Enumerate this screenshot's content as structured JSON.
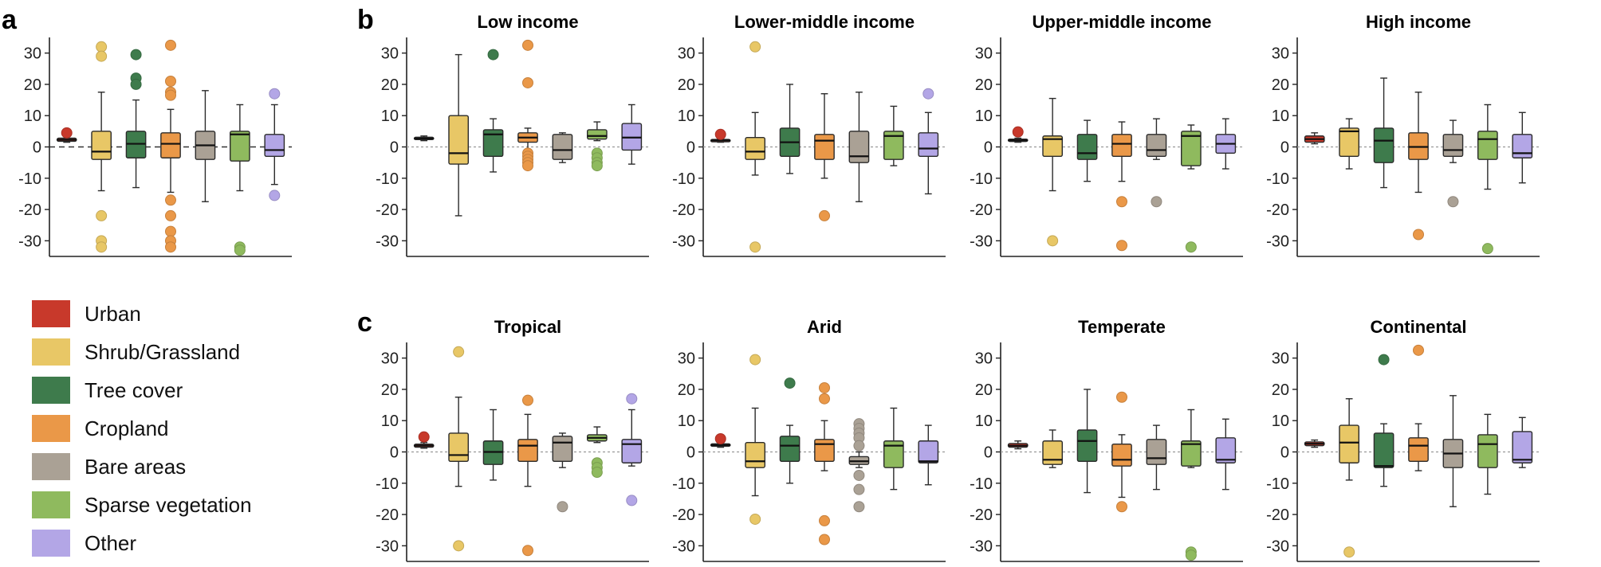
{
  "figure_labels": {
    "a": "a",
    "b": "b",
    "c": "c"
  },
  "legend": [
    {
      "name": "Urban",
      "color": "#c8392b"
    },
    {
      "name": "Shrub/Grassland",
      "color": "#e8c766"
    },
    {
      "name": "Tree cover",
      "color": "#3e7b4c"
    },
    {
      "name": "Cropland",
      "color": "#ea9848"
    },
    {
      "name": "Bare areas",
      "color": "#aaa195"
    },
    {
      "name": "Sparse vegetation",
      "color": "#8fba5e"
    },
    {
      "name": "Other",
      "color": "#b3a6e6"
    }
  ],
  "chart_data": [
    {
      "id": "a",
      "type": "box",
      "title": "",
      "ylim": [
        -35,
        35
      ],
      "yticks": [
        30,
        20,
        10,
        0,
        -10,
        -20,
        -30
      ],
      "reference_line": 0,
      "boxes": [
        {
          "class": "Urban",
          "min": 1.5,
          "q1": 1.8,
          "median": 2.3,
          "q3": 2.8,
          "max": 3.3,
          "outliers": [
            4.5
          ]
        },
        {
          "class": "Shrub/Grassland",
          "min": -14,
          "q1": -4,
          "median": -1.5,
          "q3": 5,
          "max": 17.5,
          "outliers": [
            32,
            29,
            -22,
            -30,
            -32
          ]
        },
        {
          "class": "Tree cover",
          "min": -13,
          "q1": -3.5,
          "median": 1,
          "q3": 5,
          "max": 15,
          "outliers": [
            29.5,
            22,
            20
          ]
        },
        {
          "class": "Cropland",
          "min": -14.5,
          "q1": -3.5,
          "median": 1,
          "q3": 4.5,
          "max": 12,
          "outliers": [
            32.5,
            21,
            17.5,
            16.5,
            -17,
            -22,
            -27,
            -30,
            -32
          ]
        },
        {
          "class": "Bare areas",
          "min": -17.5,
          "q1": -4,
          "median": 0.5,
          "q3": 5,
          "max": 18,
          "outliers": []
        },
        {
          "class": "Sparse vegetation",
          "min": -14,
          "q1": -4.5,
          "median": 4,
          "q3": 5,
          "max": 13.5,
          "outliers": [
            -32,
            -33
          ]
        },
        {
          "class": "Other",
          "min": -12,
          "q1": -3,
          "median": -1,
          "q3": 4,
          "max": 13.5,
          "outliers": [
            17,
            -15.5
          ]
        }
      ]
    },
    {
      "id": "b1",
      "type": "box",
      "title": "Low income",
      "ylim": [
        -35,
        35
      ],
      "yticks": [
        30,
        20,
        10,
        0,
        -10,
        -20,
        -30
      ],
      "reference_line": 0,
      "boxes": [
        {
          "class": "Urban",
          "min": 2,
          "q1": 2.4,
          "median": 2.7,
          "q3": 3.1,
          "max": 3.5,
          "outliers": []
        },
        {
          "class": "Shrub/Grassland",
          "min": -22,
          "q1": -5.5,
          "median": -2,
          "q3": 10,
          "max": 29.5,
          "outliers": []
        },
        {
          "class": "Tree cover",
          "min": -8,
          "q1": -3,
          "median": 4,
          "q3": 5.5,
          "max": 9,
          "outliers": [
            29.5
          ]
        },
        {
          "class": "Cropland",
          "min": -2,
          "q1": 1.5,
          "median": 3,
          "q3": 4.5,
          "max": 6,
          "outliers": [
            32.5,
            20.5,
            -2,
            -3,
            -4,
            -5,
            -6
          ]
        },
        {
          "class": "Bare areas",
          "min": -5,
          "q1": -4,
          "median": -1,
          "q3": 4,
          "max": 4.5,
          "outliers": []
        },
        {
          "class": "Sparse vegetation",
          "min": 2,
          "q1": 2.5,
          "median": 3.5,
          "q3": 5.5,
          "max": 8,
          "outliers": [
            -2,
            -3.5,
            -5,
            -6
          ]
        },
        {
          "class": "Other",
          "min": -5.5,
          "q1": -1,
          "median": 3,
          "q3": 7.5,
          "max": 13.5,
          "outliers": []
        }
      ]
    },
    {
      "id": "b2",
      "type": "box",
      "title": "Lower-middle income",
      "ylim": [
        -35,
        35
      ],
      "yticks": [
        30,
        20,
        10,
        0,
        -10,
        -20,
        -30
      ],
      "reference_line": 0,
      "boxes": [
        {
          "class": "Urban",
          "min": 1.5,
          "q1": 1.8,
          "median": 2.1,
          "q3": 2.4,
          "max": 2.7,
          "outliers": [
            4
          ]
        },
        {
          "class": "Shrub/Grassland",
          "min": -9,
          "q1": -4,
          "median": -1.5,
          "q3": 3,
          "max": 11,
          "outliers": [
            32,
            -32
          ]
        },
        {
          "class": "Tree cover",
          "min": -8.5,
          "q1": -3,
          "median": 1.5,
          "q3": 6,
          "max": 20,
          "outliers": []
        },
        {
          "class": "Cropland",
          "min": -10,
          "q1": -4,
          "median": 2,
          "q3": 4,
          "max": 17,
          "outliers": [
            -22
          ]
        },
        {
          "class": "Bare areas",
          "min": -17.5,
          "q1": -5,
          "median": -3,
          "q3": 5,
          "max": 17.5,
          "outliers": []
        },
        {
          "class": "Sparse vegetation",
          "min": -6,
          "q1": -4,
          "median": 3.5,
          "q3": 5,
          "max": 13,
          "outliers": []
        },
        {
          "class": "Other",
          "min": -15,
          "q1": -3,
          "median": -0.5,
          "q3": 4.5,
          "max": 11,
          "outliers": [
            17
          ]
        }
      ]
    },
    {
      "id": "b3",
      "type": "box",
      "title": "Upper-middle income",
      "ylim": [
        -35,
        35
      ],
      "yticks": [
        30,
        20,
        10,
        0,
        -10,
        -20,
        -30
      ],
      "reference_line": 0,
      "boxes": [
        {
          "class": "Urban",
          "min": 1.5,
          "q1": 1.8,
          "median": 2.1,
          "q3": 2.5,
          "max": 2.8,
          "outliers": [
            4.8
          ]
        },
        {
          "class": "Shrub/Grassland",
          "min": -14,
          "q1": -3,
          "median": 2.5,
          "q3": 3.5,
          "max": 15.5,
          "outliers": [
            -30
          ]
        },
        {
          "class": "Tree cover",
          "min": -11,
          "q1": -4,
          "median": -2,
          "q3": 4,
          "max": 8.5,
          "outliers": []
        },
        {
          "class": "Cropland",
          "min": -11,
          "q1": -3,
          "median": 1,
          "q3": 4,
          "max": 8,
          "outliers": [
            -17.5,
            -31.5
          ]
        },
        {
          "class": "Bare areas",
          "min": -4,
          "q1": -3,
          "median": -1,
          "q3": 4,
          "max": 9,
          "outliers": [
            -17.5
          ]
        },
        {
          "class": "Sparse vegetation",
          "min": -7,
          "q1": -6,
          "median": 3.5,
          "q3": 5,
          "max": 7,
          "outliers": [
            -32
          ]
        },
        {
          "class": "Other",
          "min": -7,
          "q1": -2,
          "median": 1,
          "q3": 4,
          "max": 9,
          "outliers": []
        }
      ]
    },
    {
      "id": "b4",
      "type": "box",
      "title": "High income",
      "ylim": [
        -35,
        35
      ],
      "yticks": [
        30,
        20,
        10,
        0,
        -10,
        -20,
        -30
      ],
      "reference_line": 0,
      "boxes": [
        {
          "class": "Urban",
          "min": 1,
          "q1": 1.5,
          "median": 2.5,
          "q3": 3.5,
          "max": 4.5,
          "outliers": []
        },
        {
          "class": "Shrub/Grassland",
          "min": -7,
          "q1": -3,
          "median": 5,
          "q3": 6,
          "max": 9,
          "outliers": []
        },
        {
          "class": "Tree cover",
          "min": -13,
          "q1": -5,
          "median": 2,
          "q3": 6,
          "max": 22,
          "outliers": []
        },
        {
          "class": "Cropland",
          "min": -14.5,
          "q1": -4,
          "median": 0,
          "q3": 4.5,
          "max": 17.5,
          "outliers": [
            -28
          ]
        },
        {
          "class": "Bare areas",
          "min": -5,
          "q1": -3,
          "median": -1,
          "q3": 4,
          "max": 8.5,
          "outliers": [
            -17.5
          ]
        },
        {
          "class": "Sparse vegetation",
          "min": -13.5,
          "q1": -4,
          "median": 2.5,
          "q3": 5,
          "max": 13.5,
          "outliers": [
            -32.5
          ]
        },
        {
          "class": "Other",
          "min": -11.5,
          "q1": -3.5,
          "median": -2,
          "q3": 4,
          "max": 11,
          "outliers": []
        }
      ]
    },
    {
      "id": "c1",
      "type": "box",
      "title": "Tropical",
      "ylim": [
        -35,
        35
      ],
      "yticks": [
        30,
        20,
        10,
        0,
        -10,
        -20,
        -30
      ],
      "reference_line": 0,
      "boxes": [
        {
          "class": "Urban",
          "min": 1.2,
          "q1": 1.5,
          "median": 2,
          "q3": 2.5,
          "max": 3,
          "outliers": [
            4.8
          ]
        },
        {
          "class": "Shrub/Grassland",
          "min": -11,
          "q1": -3,
          "median": -1,
          "q3": 6,
          "max": 17.5,
          "outliers": [
            32,
            -30
          ]
        },
        {
          "class": "Tree cover",
          "min": -9,
          "q1": -4,
          "median": 0,
          "q3": 3.5,
          "max": 13.5,
          "outliers": []
        },
        {
          "class": "Cropland",
          "min": -11,
          "q1": -3,
          "median": 2,
          "q3": 4,
          "max": 12,
          "outliers": [
            16.5,
            -31.5
          ]
        },
        {
          "class": "Bare areas",
          "min": -5,
          "q1": -3,
          "median": 3,
          "q3": 5,
          "max": 6,
          "outliers": [
            -17.5
          ]
        },
        {
          "class": "Sparse vegetation",
          "min": 3,
          "q1": 3.5,
          "median": 4.5,
          "q3": 5.5,
          "max": 8,
          "outliers": [
            -3.5,
            -5,
            -6.5
          ]
        },
        {
          "class": "Other",
          "min": -4.5,
          "q1": -3.5,
          "median": 2.5,
          "q3": 4,
          "max": 13.5,
          "outliers": [
            17,
            -15.5
          ]
        }
      ]
    },
    {
      "id": "c2",
      "type": "box",
      "title": "Arid",
      "ylim": [
        -35,
        35
      ],
      "yticks": [
        30,
        20,
        10,
        0,
        -10,
        -20,
        -30
      ],
      "reference_line": 0,
      "boxes": [
        {
          "class": "Urban",
          "min": 1.5,
          "q1": 1.8,
          "median": 2.2,
          "q3": 2.6,
          "max": 3,
          "outliers": [
            4.2
          ]
        },
        {
          "class": "Shrub/Grassland",
          "min": -14,
          "q1": -5,
          "median": -3,
          "q3": 3,
          "max": 14,
          "outliers": [
            29.5,
            -21.5
          ]
        },
        {
          "class": "Tree cover",
          "min": -10,
          "q1": -3,
          "median": 2,
          "q3": 5,
          "max": 8.5,
          "outliers": [
            22
          ]
        },
        {
          "class": "Cropland",
          "min": -6,
          "q1": -3,
          "median": 2.5,
          "q3": 4,
          "max": 10,
          "outliers": [
            20.5,
            17,
            -22,
            -28
          ]
        },
        {
          "class": "Bare areas",
          "min": -5,
          "q1": -4,
          "median": -3,
          "q3": -1.5,
          "max": 0,
          "outliers": [
            9,
            7.5,
            6,
            4.5,
            2,
            -7.5,
            -12,
            -17.5
          ]
        },
        {
          "class": "Sparse vegetation",
          "min": -12,
          "q1": -5,
          "median": 2,
          "q3": 3.5,
          "max": 14,
          "outliers": []
        },
        {
          "class": "Other",
          "min": -10.5,
          "q1": -3.5,
          "median": -3,
          "q3": 3.5,
          "max": 8.5,
          "outliers": []
        }
      ]
    },
    {
      "id": "c3",
      "type": "box",
      "title": "Temperate",
      "ylim": [
        -35,
        35
      ],
      "yticks": [
        30,
        20,
        10,
        0,
        -10,
        -20,
        -30
      ],
      "reference_line": 0,
      "boxes": [
        {
          "class": "Urban",
          "min": 1,
          "q1": 1.5,
          "median": 2,
          "q3": 2.7,
          "max": 3.5,
          "outliers": []
        },
        {
          "class": "Shrub/Grassland",
          "min": -5,
          "q1": -4,
          "median": -2.5,
          "q3": 3.5,
          "max": 7,
          "outliers": []
        },
        {
          "class": "Tree cover",
          "min": -13,
          "q1": -3,
          "median": 3.5,
          "q3": 7,
          "max": 20,
          "outliers": []
        },
        {
          "class": "Cropland",
          "min": -14.5,
          "q1": -4.5,
          "median": -2.5,
          "q3": 2.5,
          "max": 5.5,
          "outliers": [
            17.5,
            -17.5
          ]
        },
        {
          "class": "Bare areas",
          "min": -12,
          "q1": -4,
          "median": -2,
          "q3": 4,
          "max": 8.5,
          "outliers": []
        },
        {
          "class": "Sparse vegetation",
          "min": -5,
          "q1": -4.5,
          "median": 2.5,
          "q3": 3.5,
          "max": 13.5,
          "outliers": [
            -32,
            -33
          ]
        },
        {
          "class": "Other",
          "min": -12,
          "q1": -3.5,
          "median": -2.5,
          "q3": 4.5,
          "max": 10.5,
          "outliers": []
        }
      ]
    },
    {
      "id": "c4",
      "type": "box",
      "title": "Continental",
      "ylim": [
        -35,
        35
      ],
      "yticks": [
        30,
        20,
        10,
        0,
        -10,
        -20,
        -30
      ],
      "reference_line": 0,
      "boxes": [
        {
          "class": "Urban",
          "min": 1.5,
          "q1": 2,
          "median": 2.6,
          "q3": 3.2,
          "max": 3.8,
          "outliers": []
        },
        {
          "class": "Shrub/Grassland",
          "min": -9,
          "q1": -3.5,
          "median": 3,
          "q3": 8.5,
          "max": 17,
          "outliers": [
            -32
          ]
        },
        {
          "class": "Tree cover",
          "min": -11,
          "q1": -5,
          "median": -4.5,
          "q3": 6,
          "max": 9,
          "outliers": [
            29.5
          ]
        },
        {
          "class": "Cropland",
          "min": -6,
          "q1": -3,
          "median": 2,
          "q3": 4.5,
          "max": 9,
          "outliers": [
            32.5
          ]
        },
        {
          "class": "Bare areas",
          "min": -17.5,
          "q1": -5,
          "median": -0.5,
          "q3": 4,
          "max": 18,
          "outliers": []
        },
        {
          "class": "Sparse vegetation",
          "min": -13.5,
          "q1": -5,
          "median": 2.5,
          "q3": 5.5,
          "max": 12,
          "outliers": []
        },
        {
          "class": "Other",
          "min": -5,
          "q1": -3.5,
          "median": -2.5,
          "q3": 6.5,
          "max": 11,
          "outliers": []
        }
      ]
    }
  ]
}
